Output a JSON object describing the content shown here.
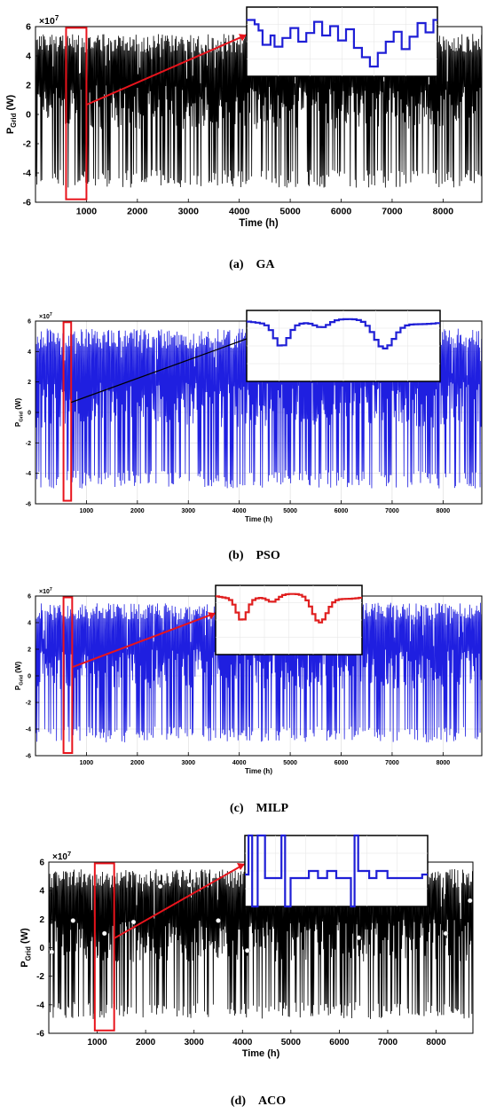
{
  "chart_data": [
    {
      "type": "line",
      "caption_letter": "(a)",
      "caption_name": "GA",
      "xlabel": "Time (h)",
      "ylabel_main": "P",
      "ylabel_sub": "Grid",
      "ylabel_unit": "(W)",
      "y_multiplier": "×10",
      "y_exponent": "7",
      "xlim": [
        0,
        8760
      ],
      "ylim": [
        -6,
        6
      ],
      "x_ticks": [
        "1000",
        "2000",
        "3000",
        "4000",
        "5000",
        "6000",
        "7000",
        "8000"
      ],
      "y_ticks": [
        "-6",
        "-4",
        "-2",
        "0",
        "2",
        "4",
        "6"
      ],
      "series": [
        {
          "values_upper_range": [
            4.2,
            5.5
          ],
          "values_lower_range": [
            -5.0,
            -3.8
          ],
          "color": "#000000"
        }
      ],
      "highlight_x_range": [
        600,
        1000
      ],
      "inset_color": "#1f1fd6",
      "grid": false
    },
    {
      "type": "line",
      "caption_letter": "(b)",
      "caption_name": "PSO",
      "xlabel": "Time (h)",
      "ylabel_main": "P",
      "ylabel_sub": "Grid",
      "ylabel_unit": "(W)",
      "y_multiplier": "×10",
      "y_exponent": "7",
      "xlim": [
        0,
        8760
      ],
      "ylim": [
        -6,
        6
      ],
      "x_ticks": [
        "1000",
        "2000",
        "3000",
        "4000",
        "5000",
        "6000",
        "7000",
        "8000"
      ],
      "y_ticks": [
        "-6",
        "-4",
        "-2",
        "0",
        "2",
        "4",
        "6"
      ],
      "series": [
        {
          "values_upper_range": [
            4.2,
            5.5
          ],
          "values_lower_range": [
            -5.0,
            -3.8
          ],
          "color": "#1f1fe0"
        }
      ],
      "highlight_x_range": [
        550,
        700
      ],
      "inset_color": "#1f1fd6",
      "grid": true
    },
    {
      "type": "line",
      "caption_letter": "(c)",
      "caption_name": "MILP",
      "xlabel": "Time (h)",
      "ylabel_main": "P",
      "ylabel_sub": "Grid",
      "ylabel_unit": "(W)",
      "y_multiplier": "×10",
      "y_exponent": "7",
      "xlim": [
        0,
        8760
      ],
      "ylim": [
        -6,
        6
      ],
      "x_ticks": [
        "1000",
        "2000",
        "3000",
        "4000",
        "5000",
        "6000",
        "7000",
        "8000"
      ],
      "y_ticks": [
        "-6",
        "-4",
        "-2",
        "0",
        "2",
        "4",
        "6"
      ],
      "series": [
        {
          "values_upper_range": [
            4.2,
            5.5
          ],
          "values_lower_range": [
            -5.0,
            -3.8
          ],
          "color": "#1f1fe0"
        }
      ],
      "highlight_x_range": [
        550,
        720
      ],
      "inset_color": "#e01f1f",
      "grid": true
    },
    {
      "type": "line",
      "caption_letter": "(d)",
      "caption_name": "ACO",
      "xlabel": "Time (h)",
      "ylabel_main": "P",
      "ylabel_sub": "Grid",
      "ylabel_unit": "(W)",
      "y_multiplier": "×10",
      "y_exponent": "7",
      "xlim": [
        0,
        8760
      ],
      "ylim": [
        -6,
        6
      ],
      "x_ticks": [
        "1000",
        "2000",
        "3000",
        "4000",
        "5000",
        "6000",
        "7000",
        "8000"
      ],
      "y_ticks": [
        "-6",
        "-4",
        "-2",
        "0",
        "2",
        "4",
        "6"
      ],
      "series": [
        {
          "values_upper_range": [
            4.2,
            5.5
          ],
          "values_lower_range": [
            -5.0,
            -3.8
          ],
          "color": "#000000"
        }
      ],
      "highlight_x_range": [
        950,
        1350
      ],
      "inset_color": "#1f1fd6",
      "grid": false
    }
  ]
}
